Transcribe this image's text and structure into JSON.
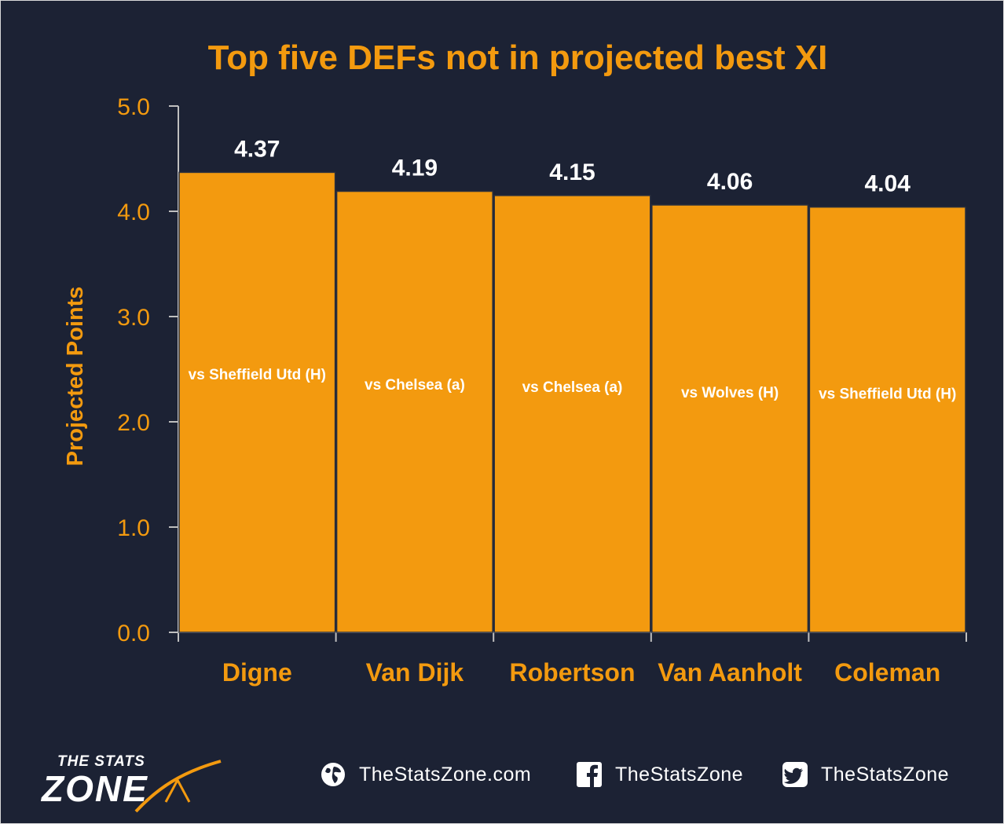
{
  "chart_data": {
    "type": "bar",
    "title": "Top five DEFs not in projected best XI",
    "xlabel": "",
    "ylabel": "Projected Points",
    "ylim": [
      0,
      5
    ],
    "yticks": [
      "0.0",
      "1.0",
      "2.0",
      "3.0",
      "4.0",
      "5.0"
    ],
    "categories": [
      "Digne",
      "Van Dijk",
      "Robertson",
      "Van Aanholt",
      "Coleman"
    ],
    "values": [
      4.37,
      4.19,
      4.15,
      4.06,
      4.04
    ],
    "value_labels": [
      "4.37",
      "4.19",
      "4.15",
      "4.06",
      "4.04"
    ],
    "bar_annotations": [
      "vs Sheffield Utd (H)",
      "vs Chelsea (a)",
      "vs Chelsea (a)",
      "vs Wolves (H)",
      "vs Sheffield Utd (H)"
    ],
    "grid": false,
    "legend": "none",
    "colors": {
      "bar": "#f39a0f",
      "text": "#f39a0f",
      "label": "#ffffff",
      "background": "#1c2234"
    }
  },
  "footer": {
    "logo_top": "THE STATS",
    "logo_main": "ZONE",
    "website": "TheStatsZone.com",
    "facebook": "TheStatsZone",
    "twitter": "TheStatsZone",
    "icons": [
      "globe-icon",
      "facebook-icon",
      "twitter-icon"
    ]
  }
}
